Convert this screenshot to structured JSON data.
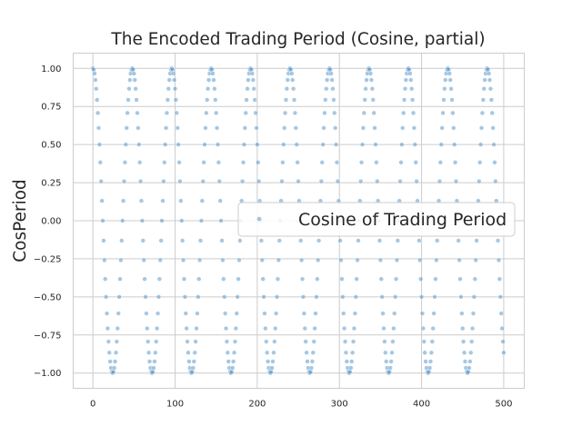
{
  "chart_data": {
    "type": "scatter",
    "title": "The Encoded Trading Period (Cosine, partial)",
    "xlabel": "",
    "ylabel": "CosPeriod",
    "xlim": [
      -24,
      525
    ],
    "ylim": [
      -1.1,
      1.1
    ],
    "x_ticks": [
      "0",
      "100",
      "200",
      "300",
      "400",
      "500"
    ],
    "x_tick_values": [
      0,
      100,
      200,
      300,
      400,
      500
    ],
    "y_ticks": [
      "1.00",
      "0.75",
      "0.50",
      "0.25",
      "0.00",
      "−0.25",
      "−0.50",
      "−0.75",
      "−1.00"
    ],
    "y_tick_values": [
      1.0,
      0.75,
      0.5,
      0.25,
      0.0,
      -0.25,
      -0.5,
      -0.75,
      -1.0
    ],
    "grid": true,
    "legend": {
      "placement": "center-right",
      "entries": [
        "Cosine of Trading Period"
      ]
    },
    "series": [
      {
        "name": "Cosine of Trading Period",
        "color": "#4c8fc7",
        "formula": "y = cos(2*pi*(x mod 48)/48)",
        "period": 48,
        "x_start": 0,
        "x_end": 500
      }
    ]
  }
}
